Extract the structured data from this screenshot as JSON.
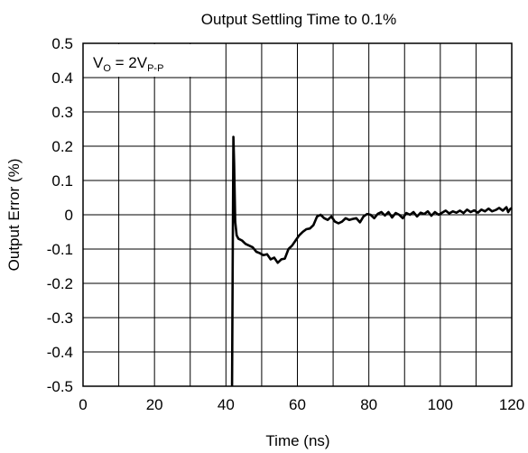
{
  "chart_data": {
    "type": "line",
    "title": "Output Settling Time to 0.1%",
    "xlabel": "Time (ns)",
    "ylabel": "Output Error (%)",
    "xlim": [
      0,
      120
    ],
    "ylim": [
      -0.5,
      0.5
    ],
    "grid": true,
    "x_ticks": [
      "0",
      "20",
      "40",
      "60",
      "80",
      "100",
      "120"
    ],
    "y_ticks": [
      "0.5",
      "0.4",
      "0.3",
      "0.2",
      "0.1",
      "0",
      "-0.1",
      "-0.2",
      "-0.3",
      "-0.4",
      "-0.5"
    ],
    "annotation": {
      "main": "V",
      "sub1": "O",
      "mid": " = 2V",
      "sub2": "P-P",
      "placement": "top-left"
    },
    "series": [
      {
        "color": "#000000",
        "points": [
          [
            41.7,
            -0.5
          ],
          [
            41.9,
            -0.1
          ],
          [
            42.1,
            0.227
          ],
          [
            42.3,
            0.15
          ],
          [
            42.6,
            -0.02
          ],
          [
            43.0,
            -0.06
          ],
          [
            43.5,
            -0.07
          ],
          [
            44.5,
            -0.075
          ],
          [
            45.5,
            -0.085
          ],
          [
            46.5,
            -0.09
          ],
          [
            47.5,
            -0.095
          ],
          [
            48.5,
            -0.108
          ],
          [
            49.5,
            -0.112
          ],
          [
            50.5,
            -0.118
          ],
          [
            51.5,
            -0.115
          ],
          [
            52.5,
            -0.13
          ],
          [
            53.5,
            -0.125
          ],
          [
            54.5,
            -0.14
          ],
          [
            55.5,
            -0.13
          ],
          [
            56.5,
            -0.128
          ],
          [
            57.5,
            -0.1
          ],
          [
            58.5,
            -0.09
          ],
          [
            59.5,
            -0.075
          ],
          [
            60.5,
            -0.06
          ],
          [
            61.5,
            -0.05
          ],
          [
            62.5,
            -0.042
          ],
          [
            63.5,
            -0.04
          ],
          [
            64.5,
            -0.03
          ],
          [
            65.5,
            -0.005
          ],
          [
            66.5,
            0.0
          ],
          [
            67.5,
            -0.01
          ],
          [
            68.5,
            -0.015
          ],
          [
            69.5,
            -0.005
          ],
          [
            70.5,
            -0.02
          ],
          [
            71.5,
            -0.025
          ],
          [
            72.5,
            -0.02
          ],
          [
            73.5,
            -0.01
          ],
          [
            74.5,
            -0.015
          ],
          [
            75.5,
            -0.012
          ],
          [
            76.5,
            -0.01
          ],
          [
            77.5,
            -0.022
          ],
          [
            78.5,
            -0.005
          ],
          [
            79.5,
            0.002
          ],
          [
            80.5,
            0.0
          ],
          [
            81.5,
            -0.01
          ],
          [
            82.5,
            0.003
          ],
          [
            83.5,
            0.008
          ],
          [
            84.5,
            -0.002
          ],
          [
            85.5,
            0.008
          ],
          [
            86.5,
            -0.008
          ],
          [
            87.5,
            0.005
          ],
          [
            88.5,
            0.0
          ],
          [
            89.5,
            -0.01
          ],
          [
            90.5,
            0.005
          ],
          [
            91.5,
            0.0
          ],
          [
            92.5,
            0.008
          ],
          [
            93.5,
            -0.005
          ],
          [
            94.5,
            0.006
          ],
          [
            95.5,
            0.002
          ],
          [
            96.5,
            0.01
          ],
          [
            97.5,
            -0.003
          ],
          [
            98.5,
            0.008
          ],
          [
            99.5,
            0.0
          ],
          [
            100.5,
            0.006
          ],
          [
            101.5,
            0.012
          ],
          [
            102.5,
            0.004
          ],
          [
            103.5,
            0.01
          ],
          [
            104.5,
            0.006
          ],
          [
            105.5,
            0.012
          ],
          [
            106.5,
            0.005
          ],
          [
            107.5,
            0.015
          ],
          [
            108.5,
            0.008
          ],
          [
            109.5,
            0.013
          ],
          [
            110.5,
            0.006
          ],
          [
            111.5,
            0.015
          ],
          [
            112.5,
            0.01
          ],
          [
            113.5,
            0.018
          ],
          [
            114.5,
            0.01
          ],
          [
            115.5,
            0.014
          ],
          [
            116.5,
            0.02
          ],
          [
            117.5,
            0.012
          ],
          [
            118.5,
            0.022
          ],
          [
            119.0,
            0.008
          ],
          [
            119.5,
            0.016
          ],
          [
            120.0,
            0.02
          ]
        ]
      }
    ]
  }
}
